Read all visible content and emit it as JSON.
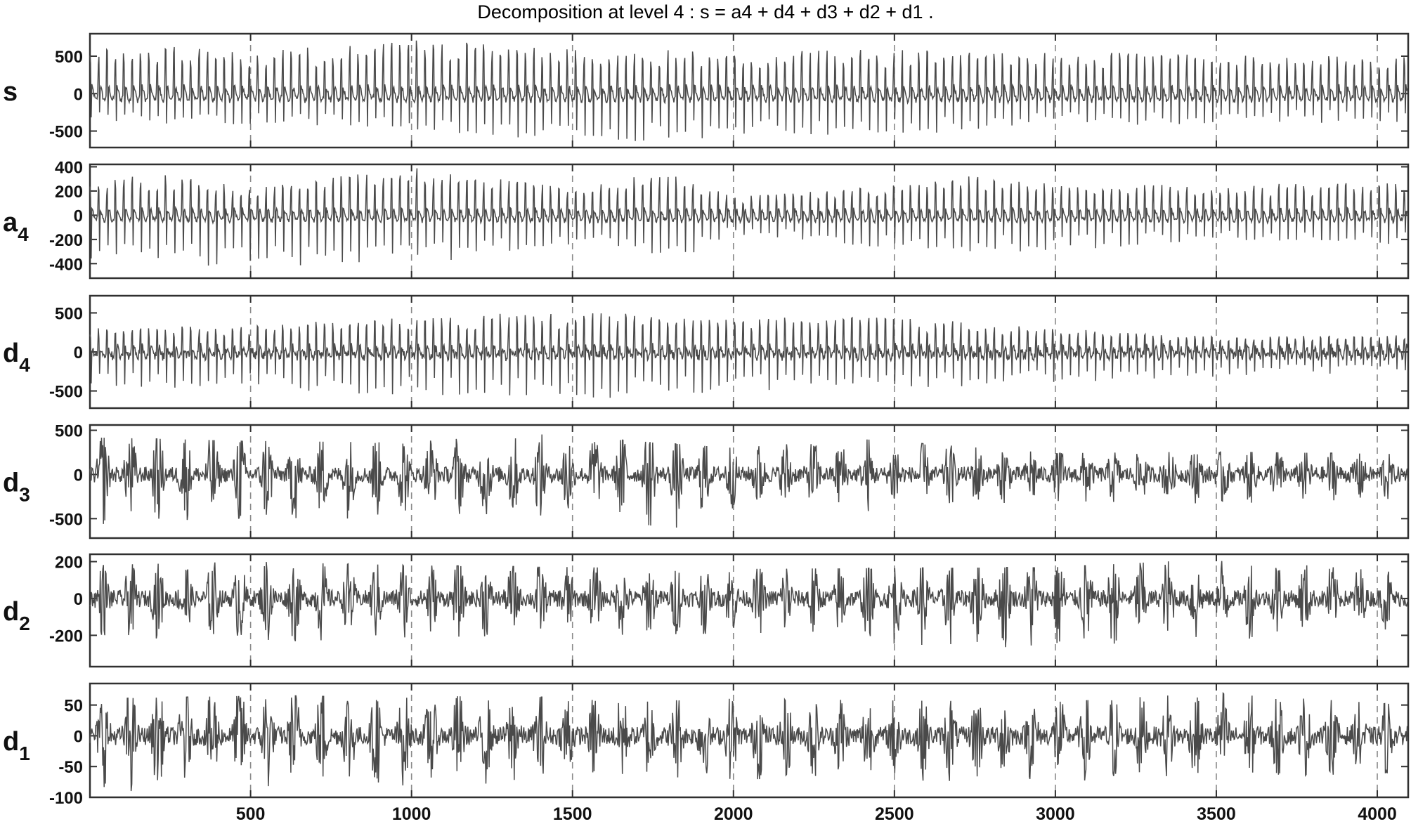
{
  "title": "Decomposition at level 4 : s = a4 + d4 + d3 + d2 + d1 .",
  "chart_data": {
    "type": "line",
    "title": "Decomposition at level 4 : s = a4 + d4 + d3 + d2 + d1 .",
    "xlim": [
      1,
      4096
    ],
    "x_ticks": [
      500,
      1000,
      1500,
      2000,
      2500,
      3000,
      3500,
      4000
    ],
    "grid": "x-dashed",
    "line_color": "#4a4a4a",
    "subplots": [
      {
        "label": "s",
        "label_sub": "",
        "ylim": [
          -720,
          800
        ],
        "y_ticks": [
          -500,
          0,
          500
        ],
        "amplitude": 580,
        "noise": 40,
        "beats": true,
        "peaks": [
          [
            0,
            600
          ],
          [
            250,
            650
          ],
          [
            500,
            560
          ],
          [
            1000,
            720
          ],
          [
            1500,
            610
          ],
          [
            2000,
            560
          ],
          [
            2500,
            600
          ],
          [
            3000,
            560
          ],
          [
            3500,
            520
          ],
          [
            4096,
            520
          ]
        ],
        "troughs": [
          [
            0,
            380
          ],
          [
            500,
            420
          ],
          [
            1000,
            500
          ],
          [
            1500,
            640
          ],
          [
            1800,
            650
          ],
          [
            2000,
            560
          ],
          [
            2500,
            560
          ],
          [
            3000,
            460
          ],
          [
            3500,
            400
          ],
          [
            4096,
            380
          ]
        ]
      },
      {
        "label": "a",
        "label_sub": "4",
        "ylim": [
          -520,
          420
        ],
        "y_ticks": [
          -400,
          -200,
          0,
          200,
          400
        ],
        "amplitude": 300,
        "noise": 20,
        "beats": true,
        "peaks": [
          [
            0,
            260
          ],
          [
            200,
            360
          ],
          [
            500,
            220
          ],
          [
            1000,
            400
          ],
          [
            1500,
            220
          ],
          [
            1800,
            370
          ],
          [
            2000,
            150
          ],
          [
            2500,
            250
          ],
          [
            2700,
            330
          ],
          [
            3000,
            260
          ],
          [
            3500,
            250
          ],
          [
            4096,
            280
          ]
        ],
        "troughs": [
          [
            0,
            360
          ],
          [
            400,
            440
          ],
          [
            1000,
            420
          ],
          [
            1500,
            240
          ],
          [
            1800,
            410
          ],
          [
            2000,
            160
          ],
          [
            2500,
            300
          ],
          [
            3000,
            300
          ],
          [
            3500,
            200
          ],
          [
            4096,
            250
          ]
        ]
      },
      {
        "label": "d",
        "label_sub": "4",
        "ylim": [
          -720,
          720
        ],
        "y_ticks": [
          -500,
          0,
          500
        ],
        "amplitude": 380,
        "noise": 60,
        "beats": true,
        "peaks": [
          [
            0,
            300
          ],
          [
            500,
            350
          ],
          [
            1000,
            450
          ],
          [
            1500,
            520
          ],
          [
            2000,
            450
          ],
          [
            2500,
            450
          ],
          [
            3000,
            300
          ],
          [
            3500,
            200
          ],
          [
            4096,
            220
          ]
        ],
        "troughs": [
          [
            0,
            420
          ],
          [
            500,
            500
          ],
          [
            1000,
            560
          ],
          [
            1500,
            620
          ],
          [
            2000,
            520
          ],
          [
            2500,
            480
          ],
          [
            3000,
            400
          ],
          [
            3500,
            320
          ],
          [
            4096,
            260
          ]
        ]
      },
      {
        "label": "d",
        "label_sub": "3",
        "ylim": [
          -720,
          560
        ],
        "y_ticks": [
          -500,
          0,
          500
        ],
        "amplitude": 220,
        "noise": 90,
        "beats": false,
        "peaks": [
          [
            0,
            420
          ],
          [
            500,
            380
          ],
          [
            1000,
            360
          ],
          [
            1300,
            480
          ],
          [
            2000,
            300
          ],
          [
            2400,
            400
          ],
          [
            3000,
            240
          ],
          [
            3500,
            260
          ],
          [
            4096,
            230
          ]
        ],
        "troughs": [
          [
            0,
            560
          ],
          [
            500,
            560
          ],
          [
            1000,
            460
          ],
          [
            1500,
            520
          ],
          [
            1800,
            640
          ],
          [
            2000,
            380
          ],
          [
            2500,
            420
          ],
          [
            3000,
            300
          ],
          [
            3500,
            330
          ],
          [
            4096,
            270
          ]
        ]
      },
      {
        "label": "d",
        "label_sub": "2",
        "ylim": [
          -370,
          240
        ],
        "y_ticks": [
          -200,
          0,
          200
        ],
        "amplitude": 110,
        "noise": 45,
        "beats": false,
        "peaks": [
          [
            0,
            180
          ],
          [
            500,
            200
          ],
          [
            1000,
            180
          ],
          [
            2000,
            160
          ],
          [
            3000,
            170
          ],
          [
            3500,
            215
          ],
          [
            4096,
            140
          ]
        ],
        "troughs": [
          [
            0,
            200
          ],
          [
            500,
            240
          ],
          [
            1000,
            210
          ],
          [
            2000,
            190
          ],
          [
            3000,
            300
          ],
          [
            3500,
            230
          ],
          [
            4096,
            160
          ]
        ]
      },
      {
        "label": "d",
        "label_sub": "1",
        "ylim": [
          -100,
          85
        ],
        "y_ticks": [
          -100,
          -50,
          0,
          50
        ],
        "amplitude": 40,
        "noise": 15,
        "beats": false,
        "peaks": [
          [
            0,
            60
          ],
          [
            500,
            65
          ],
          [
            1000,
            65
          ],
          [
            2000,
            60
          ],
          [
            3000,
            55
          ],
          [
            3500,
            70
          ],
          [
            4096,
            50
          ]
        ],
        "troughs": [
          [
            0,
            80
          ],
          [
            200,
            95
          ],
          [
            400,
            95
          ],
          [
            1000,
            80
          ],
          [
            2000,
            70
          ],
          [
            3000,
            75
          ],
          [
            4096,
            60
          ]
        ]
      }
    ]
  }
}
